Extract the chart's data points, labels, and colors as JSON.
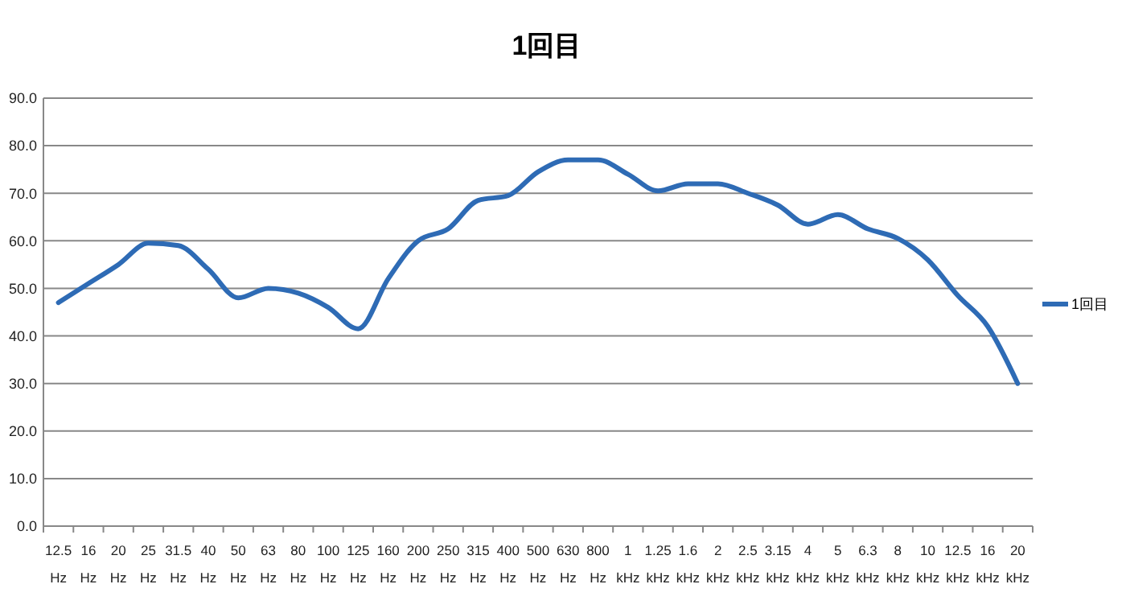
{
  "chart_data": {
    "type": "line",
    "title": "1回目",
    "categories": [
      "12.5 Hz",
      "16 Hz",
      "20 Hz",
      "25 Hz",
      "31.5 Hz",
      "40 Hz",
      "50 Hz",
      "63 Hz",
      "80 Hz",
      "100 Hz",
      "125 Hz",
      "160 Hz",
      "200 Hz",
      "250 Hz",
      "315 Hz",
      "400 Hz",
      "500 Hz",
      "630 Hz",
      "800 Hz",
      "1 kHz",
      "1.25 kHz",
      "1.6 kHz",
      "2 kHz",
      "2.5 kHz",
      "3.15 kHz",
      "4 kHz",
      "5 kHz",
      "6.3 kHz",
      "8 kHz",
      "10 kHz",
      "12.5 kHz",
      "16 kHz",
      "20 kHz"
    ],
    "series": [
      {
        "name": "1回目",
        "color": "#2e6bb5",
        "values": [
          47,
          51,
          55,
          59.5,
          59,
          54,
          48,
          50,
          49,
          46,
          41.5,
          52,
          60,
          62.5,
          68.5,
          69.5,
          74.5,
          77,
          77,
          74,
          70.5,
          72,
          72,
          70,
          67.5,
          63.5,
          65.5,
          62.5,
          60.5,
          56,
          48.5,
          42,
          30
        ]
      }
    ],
    "ylim": [
      0,
      90
    ],
    "yticks": [
      {
        "value": 0,
        "label": "0.0"
      },
      {
        "value": 10,
        "label": "10.0"
      },
      {
        "value": 20,
        "label": "20.0"
      },
      {
        "value": 30,
        "label": "30.0"
      },
      {
        "value": 40,
        "label": "40.0"
      },
      {
        "value": 50,
        "label": "50.0"
      },
      {
        "value": 60,
        "label": "60.0"
      },
      {
        "value": 70,
        "label": "70.0"
      },
      {
        "value": 80,
        "label": "80.0"
      },
      {
        "value": 90,
        "label": "90.0"
      }
    ],
    "grid": "y",
    "legend": "right",
    "marker": "none",
    "line_style": "solid"
  }
}
